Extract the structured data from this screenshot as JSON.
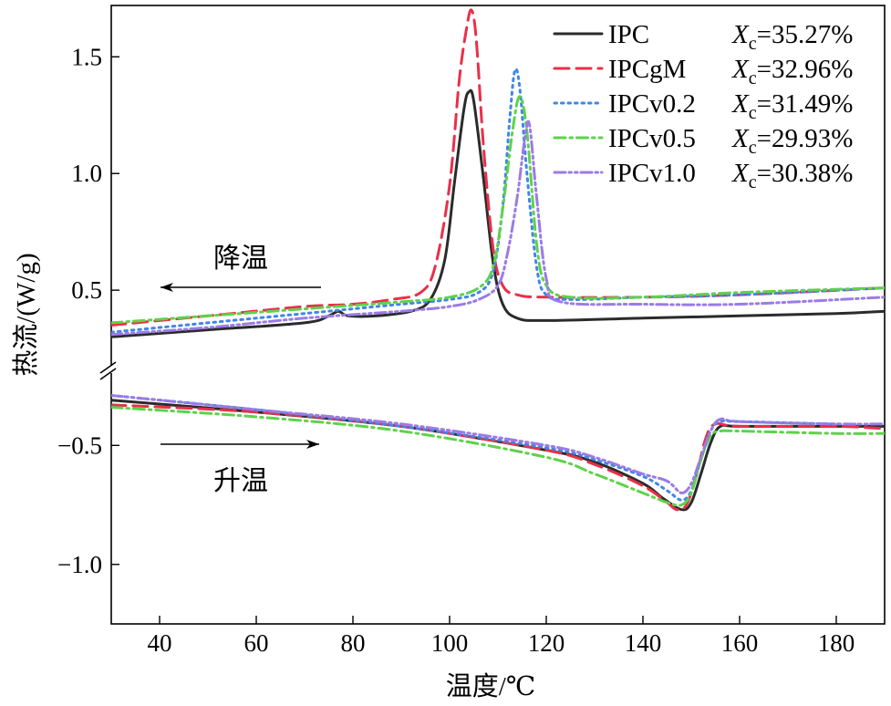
{
  "chart_data": {
    "type": "line",
    "xlabel": "温度/℃",
    "ylabel": "热流/(W/g)",
    "xlim": [
      30,
      190
    ],
    "x_ticks": [
      "40",
      "60",
      "80",
      "100",
      "120",
      "140",
      "160",
      "180"
    ],
    "upper_panel": {
      "ylim": [
        0.18,
        1.72
      ],
      "y_ticks": [
        "0.5",
        "1.0",
        "1.5"
      ],
      "arrow_label": "降温",
      "arrow_direction": "left"
    },
    "lower_panel": {
      "ylim": [
        -1.25,
        -0.2
      ],
      "y_ticks": [
        "−1.0",
        "−0.5"
      ],
      "arrow_label": "升温",
      "arrow_direction": "right"
    },
    "legend_position": "top-right",
    "series": [
      {
        "name": "IPC",
        "xc_value": "=35.27%",
        "color": "#2b2b2b",
        "dash": "solid",
        "cooling": [
          [
            30,
            0.3
          ],
          [
            50,
            0.33
          ],
          [
            70,
            0.36
          ],
          [
            75,
            0.39
          ],
          [
            77,
            0.41
          ],
          [
            79,
            0.39
          ],
          [
            85,
            0.39
          ],
          [
            92,
            0.41
          ],
          [
            96,
            0.46
          ],
          [
            99,
            0.63
          ],
          [
            101,
            0.96
          ],
          [
            103,
            1.28
          ],
          [
            104,
            1.35
          ],
          [
            105,
            1.31
          ],
          [
            107,
            0.98
          ],
          [
            109,
            0.62
          ],
          [
            111,
            0.44
          ],
          [
            114,
            0.38
          ],
          [
            120,
            0.37
          ],
          [
            140,
            0.38
          ],
          [
            160,
            0.39
          ],
          [
            180,
            0.4
          ],
          [
            190,
            0.41
          ]
        ],
        "heating": [
          [
            30,
            -0.31
          ],
          [
            60,
            -0.36
          ],
          [
            90,
            -0.42
          ],
          [
            120,
            -0.52
          ],
          [
            130,
            -0.57
          ],
          [
            140,
            -0.66
          ],
          [
            144,
            -0.72
          ],
          [
            148,
            -0.77
          ],
          [
            150,
            -0.74
          ],
          [
            152,
            -0.62
          ],
          [
            154,
            -0.49
          ],
          [
            156,
            -0.42
          ],
          [
            160,
            -0.42
          ],
          [
            180,
            -0.42
          ],
          [
            190,
            -0.42
          ]
        ]
      },
      {
        "name": "IPCgM",
        "xc_value": "=32.96%",
        "color": "#e8304a",
        "dash": "long-dash",
        "cooling": [
          [
            30,
            0.35
          ],
          [
            50,
            0.39
          ],
          [
            70,
            0.43
          ],
          [
            80,
            0.44
          ],
          [
            88,
            0.46
          ],
          [
            94,
            0.49
          ],
          [
            97,
            0.6
          ],
          [
            100,
            0.95
          ],
          [
            102,
            1.4
          ],
          [
            103.5,
            1.62
          ],
          [
            104.5,
            1.7
          ],
          [
            105.5,
            1.58
          ],
          [
            107,
            1.12
          ],
          [
            109,
            0.68
          ],
          [
            111,
            0.52
          ],
          [
            114,
            0.48
          ],
          [
            120,
            0.47
          ],
          [
            140,
            0.47
          ],
          [
            160,
            0.48
          ],
          [
            190,
            0.51
          ]
        ],
        "heating": [
          [
            30,
            -0.33
          ],
          [
            60,
            -0.36
          ],
          [
            90,
            -0.42
          ],
          [
            120,
            -0.52
          ],
          [
            130,
            -0.58
          ],
          [
            140,
            -0.67
          ],
          [
            145,
            -0.74
          ],
          [
            147,
            -0.77
          ],
          [
            149,
            -0.75
          ],
          [
            151,
            -0.63
          ],
          [
            153,
            -0.47
          ],
          [
            155,
            -0.41
          ],
          [
            160,
            -0.42
          ],
          [
            180,
            -0.42
          ],
          [
            190,
            -0.43
          ]
        ]
      },
      {
        "name": "IPCv0.2",
        "xc_value": "=31.49%",
        "color": "#3f86e8",
        "dash": "dotted",
        "cooling": [
          [
            30,
            0.32
          ],
          [
            50,
            0.36
          ],
          [
            70,
            0.4
          ],
          [
            90,
            0.44
          ],
          [
            100,
            0.46
          ],
          [
            106,
            0.49
          ],
          [
            109,
            0.58
          ],
          [
            111,
            0.86
          ],
          [
            112.5,
            1.25
          ],
          [
            113.5,
            1.44
          ],
          [
            114.5,
            1.37
          ],
          [
            116,
            1.0
          ],
          [
            118,
            0.6
          ],
          [
            120,
            0.48
          ],
          [
            125,
            0.46
          ],
          [
            140,
            0.47
          ],
          [
            160,
            0.48
          ],
          [
            190,
            0.51
          ]
        ],
        "heating": [
          [
            30,
            -0.29
          ],
          [
            60,
            -0.35
          ],
          [
            90,
            -0.42
          ],
          [
            120,
            -0.51
          ],
          [
            130,
            -0.56
          ],
          [
            140,
            -0.63
          ],
          [
            145,
            -0.69
          ],
          [
            148,
            -0.73
          ],
          [
            150,
            -0.69
          ],
          [
            152,
            -0.56
          ],
          [
            154,
            -0.44
          ],
          [
            156,
            -0.4
          ],
          [
            160,
            -0.4
          ],
          [
            180,
            -0.41
          ],
          [
            190,
            -0.41
          ]
        ]
      },
      {
        "name": "IPCv0.5",
        "xc_value": "=29.93%",
        "color": "#5ed24a",
        "dash": "dash-dot",
        "cooling": [
          [
            30,
            0.36
          ],
          [
            50,
            0.39
          ],
          [
            70,
            0.42
          ],
          [
            90,
            0.45
          ],
          [
            100,
            0.47
          ],
          [
            106,
            0.51
          ],
          [
            109,
            0.6
          ],
          [
            111,
            0.85
          ],
          [
            113,
            1.18
          ],
          [
            114.5,
            1.33
          ],
          [
            116,
            1.18
          ],
          [
            118,
            0.7
          ],
          [
            120,
            0.52
          ],
          [
            125,
            0.47
          ],
          [
            140,
            0.47
          ],
          [
            160,
            0.49
          ],
          [
            190,
            0.51
          ]
        ],
        "heating": [
          [
            30,
            -0.34
          ],
          [
            60,
            -0.38
          ],
          [
            90,
            -0.44
          ],
          [
            120,
            -0.55
          ],
          [
            130,
            -0.62
          ],
          [
            140,
            -0.7
          ],
          [
            145,
            -0.74
          ],
          [
            148,
            -0.75
          ],
          [
            150,
            -0.7
          ],
          [
            152,
            -0.56
          ],
          [
            154,
            -0.46
          ],
          [
            156,
            -0.44
          ],
          [
            160,
            -0.44
          ],
          [
            180,
            -0.45
          ],
          [
            190,
            -0.45
          ]
        ]
      },
      {
        "name": "IPCv1.0",
        "xc_value": "=30.38%",
        "color": "#9b7be6",
        "dash": "dash-dot-dot",
        "cooling": [
          [
            30,
            0.31
          ],
          [
            50,
            0.34
          ],
          [
            70,
            0.38
          ],
          [
            90,
            0.41
          ],
          [
            100,
            0.43
          ],
          [
            106,
            0.46
          ],
          [
            110,
            0.52
          ],
          [
            112,
            0.66
          ],
          [
            114,
            0.9
          ],
          [
            115.5,
            1.14
          ],
          [
            116.5,
            1.21
          ],
          [
            118,
            0.9
          ],
          [
            120,
            0.55
          ],
          [
            123,
            0.45
          ],
          [
            140,
            0.44
          ],
          [
            160,
            0.44
          ],
          [
            190,
            0.47
          ]
        ],
        "heating": [
          [
            30,
            -0.29
          ],
          [
            60,
            -0.35
          ],
          [
            90,
            -0.41
          ],
          [
            120,
            -0.5
          ],
          [
            130,
            -0.55
          ],
          [
            140,
            -0.62
          ],
          [
            145,
            -0.65
          ],
          [
            148,
            -0.7
          ],
          [
            150,
            -0.66
          ],
          [
            152,
            -0.55
          ],
          [
            154,
            -0.44
          ],
          [
            156,
            -0.39
          ],
          [
            160,
            -0.4
          ],
          [
            180,
            -0.41
          ],
          [
            190,
            -0.41
          ]
        ]
      }
    ]
  }
}
